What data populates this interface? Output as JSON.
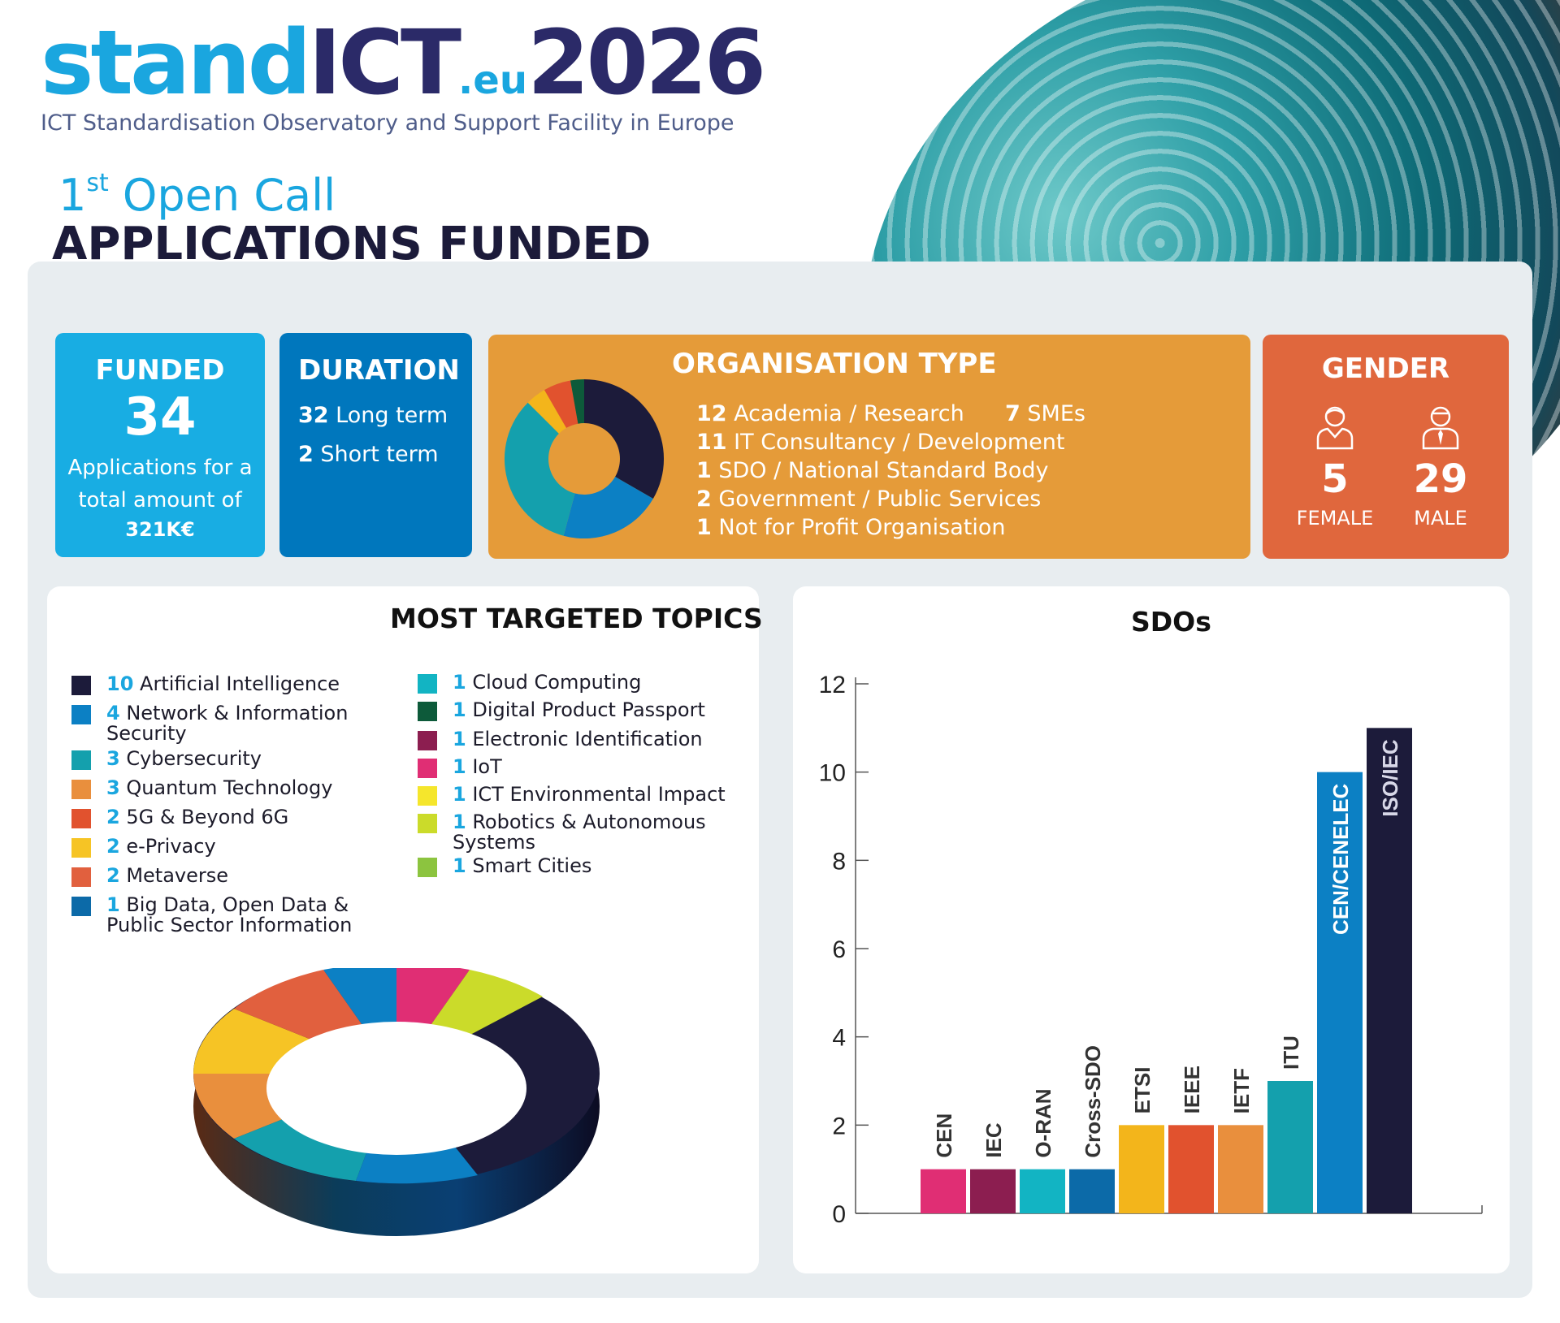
{
  "header": {
    "logo_stand": "stand",
    "logo_ict": "ICT",
    "logo_eu": ".eu",
    "logo_year": "2026",
    "subtitle": "ICT Standardisation Observatory and Support Facility in Europe",
    "open_call_num": "1",
    "open_call_sup": "st",
    "open_call_text": " Open Call",
    "main_title": "APPLICATIONS FUNDED"
  },
  "funded": {
    "title": "FUNDED",
    "number": "34",
    "text": "Applications for a total amount of",
    "amount": "321K€"
  },
  "duration": {
    "title": "DURATION",
    "items": [
      {
        "num": "32",
        "label": " Long term"
      },
      {
        "num": "2",
        "label": " Short term"
      }
    ]
  },
  "organisation": {
    "title": "ORGANISATION TYPE",
    "items": [
      {
        "num": "12",
        "label": " Academia / Research"
      },
      {
        "num": "7",
        "label": " SMEs"
      },
      {
        "num": "11",
        "label": " IT Consultancy / Development"
      },
      {
        "num": "1",
        "label": "  SDO / National Standard Body"
      },
      {
        "num": "2",
        "label": " Government / Public Services"
      },
      {
        "num": "1",
        "label": " Not for Profit Organisation"
      }
    ],
    "chart_colors": [
      "#1c1b3a",
      "#0c80c4",
      "#14a0ad",
      "#f3b51b",
      "#e1522e",
      "#0d5a3a"
    ]
  },
  "gender": {
    "title": "GENDER",
    "female_num": "5",
    "female_label": "FEMALE",
    "male_num": "29",
    "male_label": "MALE"
  },
  "topics": {
    "title": "MOST TARGETED TOPICS",
    "left": [
      {
        "num": "10",
        "label": " Artificial Intelligence",
        "color": "#1c1b3a"
      },
      {
        "num": "4",
        "label": " Network & Information Security",
        "color": "#0c80c4"
      },
      {
        "num": "3",
        "label": " Cybersecurity",
        "color": "#14a0ad"
      },
      {
        "num": "3",
        "label": " Quantum Technology",
        "color": "#e98f3d"
      },
      {
        "num": "2",
        "label": " 5G & Beyond 6G",
        "color": "#e1522e"
      },
      {
        "num": "2",
        "label": " e-Privacy",
        "color": "#f6c425"
      },
      {
        "num": "2",
        "label": " Metaverse",
        "color": "#e1603e"
      },
      {
        "num": "1",
        "label": " Big Data, Open Data & Public Sector Information",
        "color": "#0c6aa8"
      }
    ],
    "right": [
      {
        "num": "1",
        "label": " Cloud Computing",
        "color": "#12b4c3"
      },
      {
        "num": "1",
        "label": " Digital Product Passport",
        "color": "#0d5a3a"
      },
      {
        "num": "1",
        "label": " Electronic Identification",
        "color": "#8c1e50"
      },
      {
        "num": "1",
        "label": " IoT",
        "color": "#e02e74"
      },
      {
        "num": "1",
        "label": " ICT Environmental Impact",
        "color": "#f5e62c"
      },
      {
        "num": "1",
        "label": " Robotics & Autonomous Systems",
        "color": "#cbdb2a"
      },
      {
        "num": "1",
        "label": " Smart Cities",
        "color": "#8cc43f"
      }
    ]
  },
  "chart_data": {
    "type": "bar",
    "title": "SDOs",
    "categories": [
      "CEN",
      "IEC",
      "O-RAN",
      "Cross-SDO",
      "ETSI",
      "IEEE",
      "IETF",
      "ITU",
      "CEN/CENELEC",
      "ISO/IEC"
    ],
    "values": [
      1,
      1,
      1,
      1,
      2,
      2,
      2,
      3,
      10,
      11
    ],
    "colors": [
      "#e02e74",
      "#8c1e50",
      "#12b4c3",
      "#0c6aa8",
      "#f3b51b",
      "#e1522e",
      "#e98f3d",
      "#14a0ad",
      "#0c80c4",
      "#1c1b3a"
    ],
    "yticks": [
      "0",
      "2",
      "4",
      "6",
      "8",
      "10",
      "12"
    ],
    "ylim": [
      0,
      12
    ],
    "grid": false
  }
}
